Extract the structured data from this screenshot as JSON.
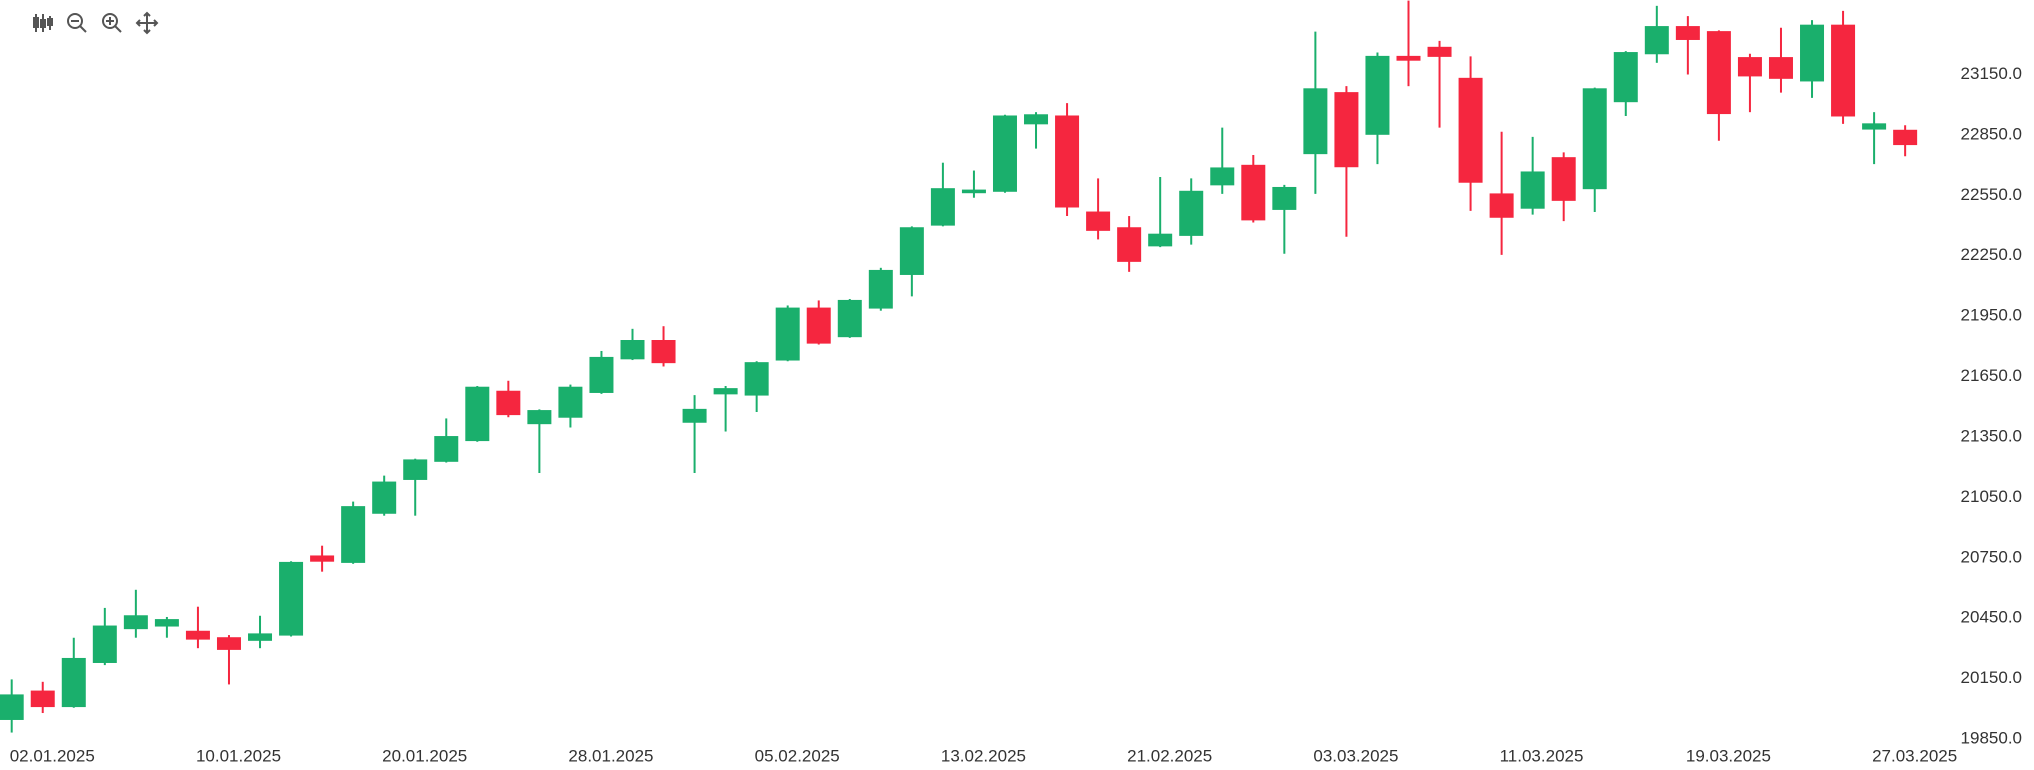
{
  "chart_data": {
    "type": "candlestick",
    "categories": [
      "02.01.2025",
      null,
      null,
      null,
      null,
      null,
      "10.01.2025",
      null,
      null,
      null,
      null,
      null,
      "20.01.2025",
      null,
      null,
      null,
      null,
      null,
      "28.01.2025",
      null,
      null,
      null,
      null,
      null,
      "05.02.2025",
      null,
      null,
      null,
      null,
      null,
      "13.02.2025",
      null,
      null,
      null,
      null,
      null,
      "21.02.2025",
      null,
      null,
      null,
      null,
      null,
      "03.03.2025",
      null,
      null,
      null,
      null,
      null,
      "11.03.2025",
      null,
      null,
      null,
      null,
      null,
      "19.03.2025",
      null,
      null,
      null,
      null,
      null,
      "27.03.2025",
      null
    ],
    "open": [
      19947,
      20088,
      20011,
      20230,
      20398,
      20411,
      20385,
      20353,
      20340,
      20366,
      20759,
      20727,
      20971,
      21139,
      21229,
      21332,
      21577,
      21416,
      21448,
      21571,
      21738,
      21829,
      21423,
      21564,
      21558,
      21732,
      21990,
      21848,
      21990,
      22157,
      22402,
      22563,
      22570,
      22905,
      22944,
      22467,
      22389,
      22299,
      22351,
      22602,
      22699,
      22480,
      22757,
      23060,
      22853,
      23240,
      23285,
      23131,
      22557,
      22486,
      22737,
      22583,
      23015,
      23253,
      23388,
      23363,
      23234,
      23234,
      23118,
      23395,
      22879,
      22873
    ],
    "high": [
      20146,
      20134,
      20353,
      20501,
      20591,
      20456,
      20507,
      20366,
      20462,
      20733,
      20810,
      21029,
      21158,
      21242,
      21442,
      21603,
      21629,
      21487,
      21610,
      21777,
      21887,
      21900,
      21558,
      21603,
      21726,
      22003,
      22028,
      22035,
      22190,
      22396,
      22712,
      22673,
      22950,
      22963,
      23008,
      22634,
      22447,
      22641,
      22634,
      22886,
      22750,
      22602,
      23363,
      23092,
      23259,
      23517,
      23317,
      23240,
      22866,
      22840,
      22763,
      23085,
      23266,
      23491,
      23440,
      23369,
      23253,
      23382,
      23420,
      23466,
      22963,
      22898
    ],
    "low": [
      19882,
      19979,
      20005,
      20217,
      20353,
      20353,
      20301,
      20121,
      20301,
      20359,
      20681,
      20720,
      20959,
      20959,
      21223,
      21326,
      21448,
      21171,
      21397,
      21564,
      21732,
      21700,
      21171,
      21377,
      21474,
      21726,
      21809,
      21842,
      21977,
      22048,
      22396,
      22538,
      22563,
      22782,
      22447,
      22331,
      22170,
      22293,
      22305,
      22557,
      22415,
      22260,
      22557,
      22344,
      22705,
      23092,
      22886,
      22473,
      22254,
      22454,
      22422,
      22467,
      22944,
      23208,
      23150,
      22821,
      22963,
      23060,
      23034,
      22905,
      22705,
      22744
    ],
    "close": [
      20069,
      20011,
      20250,
      20411,
      20462,
      20443,
      20346,
      20295,
      20372,
      20727,
      20733,
      21004,
      21126,
      21236,
      21352,
      21597,
      21461,
      21481,
      21597,
      21745,
      21829,
      21719,
      21487,
      21590,
      21719,
      21990,
      21816,
      22028,
      22177,
      22389,
      22583,
      22576,
      22944,
      22950,
      22492,
      22376,
      22222,
      22357,
      22570,
      22686,
      22428,
      22589,
      23079,
      22692,
      23240,
      23221,
      23240,
      22615,
      22441,
      22666,
      22525,
      23079,
      23259,
      23388,
      23324,
      22956,
      23143,
      23131,
      23395,
      22944,
      22905,
      22802
    ],
    "up_color": "#1aaf6c",
    "down_color": "#f5263f",
    "ylim": [
      19850,
      23520
    ],
    "yticks": [
      {
        "value": 19850,
        "label": "19850.0"
      },
      {
        "value": 20150,
        "label": "20150.0"
      },
      {
        "value": 20450,
        "label": "20450.0"
      },
      {
        "value": 20750,
        "label": "20750.0"
      },
      {
        "value": 21050,
        "label": "21050.0"
      },
      {
        "value": 21350,
        "label": "21350.0"
      },
      {
        "value": 21650,
        "label": "21650.0"
      },
      {
        "value": 21950,
        "label": "21950.0"
      },
      {
        "value": 22250,
        "label": "22250.0"
      },
      {
        "value": 22550,
        "label": "22550.0"
      },
      {
        "value": 22850,
        "label": "22850.0"
      },
      {
        "value": 23150,
        "label": "23150.0"
      }
    ],
    "grid": false
  }
}
